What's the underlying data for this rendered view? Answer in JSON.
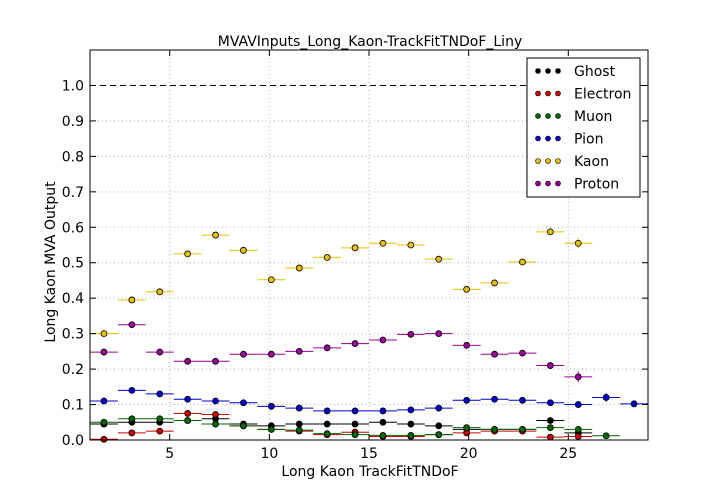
{
  "chart_data": {
    "type": "scatter",
    "title": "MVAVInputs_Long_Kaon-TrackFitTNDoF_Liny",
    "xlabel": "Long Kaon TrackFitTNDoF",
    "ylabel": "Long Kaon MVA Output",
    "xlim": [
      1,
      29
    ],
    "ylim": [
      0,
      1.1
    ],
    "xticks": [
      5,
      10,
      15,
      20,
      25
    ],
    "yticks": [
      0.0,
      0.1,
      0.2,
      0.3,
      0.4,
      0.5,
      0.6,
      0.7,
      0.8,
      0.9,
      1.0
    ],
    "grid": true,
    "reference_line": 1.0,
    "legend_position": "top-right",
    "bin_edges": [
      1.0,
      2.4,
      3.8,
      5.2,
      6.6,
      8.0,
      9.4,
      10.8,
      12.2,
      13.6,
      15.0,
      16.4,
      17.8,
      19.2,
      20.6,
      22.0,
      23.4,
      24.8,
      26.2,
      27.6,
      29.0
    ],
    "x": [
      1.7,
      3.1,
      4.5,
      5.9,
      7.3,
      8.7,
      10.1,
      11.5,
      12.9,
      14.3,
      15.7,
      17.1,
      18.5,
      19.9,
      21.3,
      22.7,
      24.1,
      25.5,
      26.9,
      28.3
    ],
    "series": [
      {
        "name": "Ghost",
        "color": "#000000",
        "values": [
          0.045,
          0.05,
          0.05,
          0.055,
          0.06,
          0.045,
          0.04,
          0.045,
          0.045,
          0.045,
          0.05,
          0.045,
          0.04,
          0.03,
          0.03,
          0.03,
          0.055,
          0.02,
          null,
          null
        ],
        "errors": [
          0.003,
          0.003,
          0.003,
          0.003,
          0.003,
          0.003,
          0.003,
          0.003,
          0.003,
          0.003,
          0.003,
          0.003,
          0.003,
          0.003,
          0.004,
          0.004,
          0.005,
          0.006,
          null,
          null
        ]
      },
      {
        "name": "Electron",
        "color": "#cc0000",
        "values": [
          0.002,
          0.02,
          0.025,
          0.075,
          0.072,
          0.04,
          0.03,
          0.025,
          0.015,
          0.022,
          0.01,
          0.01,
          0.015,
          0.02,
          0.025,
          0.025,
          0.008,
          0.01,
          null,
          null
        ],
        "errors": [
          0.002,
          0.003,
          0.003,
          0.004,
          0.004,
          0.003,
          0.003,
          0.003,
          0.003,
          0.003,
          0.003,
          0.003,
          0.003,
          0.003,
          0.004,
          0.004,
          0.004,
          0.005,
          null,
          null
        ]
      },
      {
        "name": "Muon",
        "color": "#006600",
        "values": [
          0.05,
          0.06,
          0.06,
          0.055,
          0.045,
          0.04,
          0.03,
          0.028,
          0.018,
          0.015,
          0.013,
          0.013,
          0.015,
          0.035,
          0.03,
          0.03,
          0.035,
          0.03,
          0.012,
          null
        ],
        "errors": [
          0.003,
          0.003,
          0.003,
          0.003,
          0.003,
          0.003,
          0.003,
          0.003,
          0.003,
          0.003,
          0.003,
          0.003,
          0.003,
          0.003,
          0.004,
          0.004,
          0.004,
          0.005,
          0.006,
          null
        ]
      },
      {
        "name": "Pion",
        "color": "#0000cc",
        "values": [
          0.11,
          0.14,
          0.13,
          0.115,
          0.11,
          0.105,
          0.095,
          0.09,
          0.082,
          0.082,
          0.082,
          0.085,
          0.09,
          0.112,
          0.115,
          0.112,
          0.105,
          0.1,
          0.12,
          0.102
        ],
        "errors": [
          0.004,
          0.004,
          0.004,
          0.004,
          0.004,
          0.004,
          0.004,
          0.004,
          0.004,
          0.004,
          0.004,
          0.004,
          0.004,
          0.005,
          0.005,
          0.005,
          0.006,
          0.008,
          0.012,
          0.006
        ]
      },
      {
        "name": "Kaon",
        "color": "#e6c000",
        "values": [
          0.3,
          0.395,
          0.418,
          0.525,
          0.578,
          0.535,
          0.452,
          0.485,
          0.515,
          0.542,
          0.555,
          0.55,
          0.51,
          0.425,
          0.443,
          0.502,
          0.587,
          0.555,
          null,
          null
        ],
        "errors": [
          0.005,
          0.006,
          0.006,
          0.006,
          0.006,
          0.006,
          0.006,
          0.006,
          0.006,
          0.006,
          0.006,
          0.006,
          0.006,
          0.007,
          0.007,
          0.008,
          0.01,
          0.015,
          null,
          null
        ]
      },
      {
        "name": "Proton",
        "color": "#990099",
        "values": [
          0.248,
          0.325,
          0.248,
          0.222,
          0.222,
          0.242,
          0.242,
          0.25,
          0.26,
          0.272,
          0.282,
          0.298,
          0.3,
          0.267,
          0.242,
          0.245,
          0.21,
          0.178,
          null,
          null
        ],
        "errors": [
          0.005,
          0.006,
          0.005,
          0.005,
          0.005,
          0.005,
          0.005,
          0.005,
          0.005,
          0.005,
          0.005,
          0.005,
          0.006,
          0.006,
          0.006,
          0.007,
          0.008,
          0.015,
          null,
          null
        ]
      }
    ]
  }
}
